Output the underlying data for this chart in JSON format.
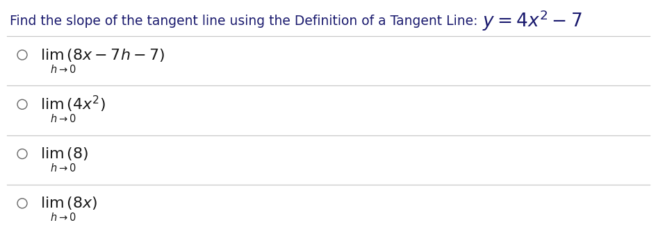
{
  "bg_color": "#ffffff",
  "text_color": "#1a1a6e",
  "dark_text": "#1a1a1a",
  "question_plain": "Find the slope of the tangent line using the Definition of a Tangent Line: ",
  "equation": "$y = 4x^2 - 7$",
  "options": [
    {
      "main": "$\\mathrm{lim}\\,(8x - 7h - 7)$",
      "sub": "$h \\to 0$"
    },
    {
      "main": "$\\mathrm{lim}\\,(4x^2)$",
      "sub": "$h \\to 0$"
    },
    {
      "main": "$\\mathrm{lim}\\,(8)$",
      "sub": "$h \\to 0$"
    },
    {
      "main": "$\\mathrm{lim}\\,(8x)$",
      "sub": "$h \\to 0$"
    }
  ],
  "divider_color": "#c8c8c8",
  "circle_color": "#666666",
  "q_fontsize": 13.5,
  "eq_fontsize": 19,
  "opt_fontsize": 16,
  "sub_fontsize": 10.5
}
